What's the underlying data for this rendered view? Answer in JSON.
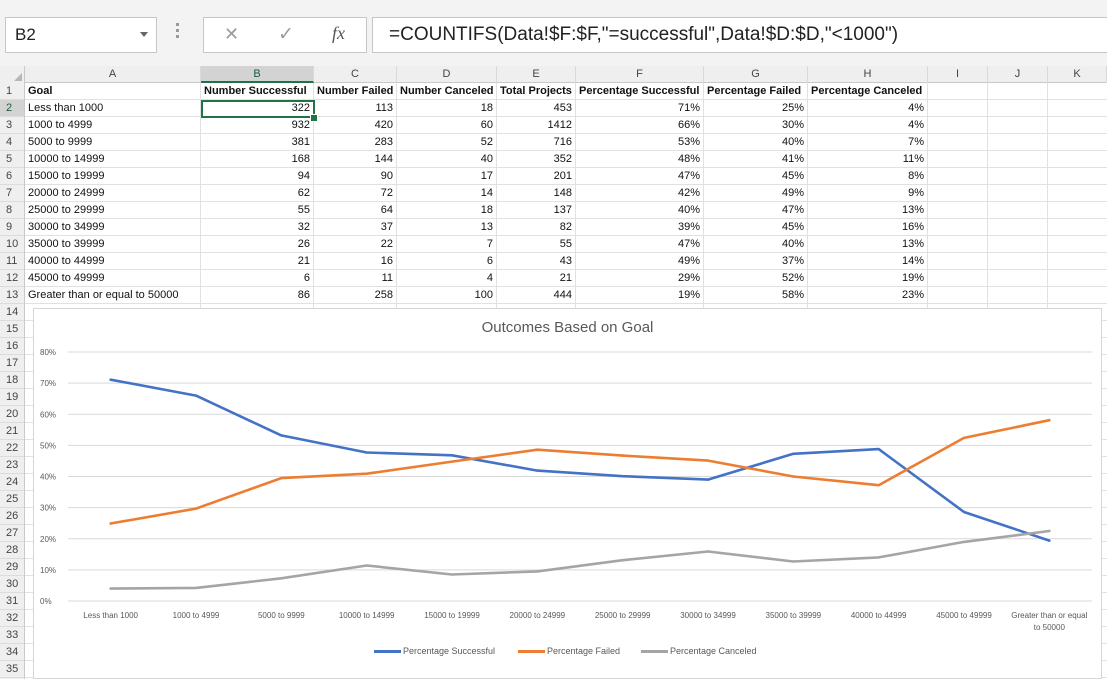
{
  "formula_bar": {
    "name_box": "B2",
    "cancel_symbol": "✕",
    "enter_symbol": "✓",
    "fx_symbol": "fx",
    "formula": "=COUNTIFS(Data!$F:$F,\"=successful\",Data!$D:$D,\"<1000\")"
  },
  "columns": [
    "A",
    "B",
    "C",
    "D",
    "E",
    "F",
    "G",
    "H",
    "I",
    "J",
    "K"
  ],
  "rows": [
    "1",
    "2",
    "3",
    "4",
    "5",
    "6",
    "7",
    "8",
    "9",
    "10",
    "11",
    "12",
    "13",
    "14",
    "15",
    "16",
    "17",
    "18",
    "19",
    "20",
    "21",
    "22",
    "23",
    "24",
    "25",
    "26",
    "27",
    "28",
    "29",
    "30",
    "31",
    "32",
    "33",
    "34",
    "35"
  ],
  "table": {
    "headers": [
      "Goal",
      "Number Successful",
      "Number Failed",
      "Number Canceled",
      "Total Projects",
      "Percentage Successful",
      "Percentage Failed",
      "Percentage Canceled"
    ],
    "data": [
      [
        "Less than 1000",
        "322",
        "113",
        "18",
        "453",
        "71%",
        "25%",
        "4%"
      ],
      [
        "1000 to 4999",
        "932",
        "420",
        "60",
        "1412",
        "66%",
        "30%",
        "4%"
      ],
      [
        "5000 to 9999",
        "381",
        "283",
        "52",
        "716",
        "53%",
        "40%",
        "7%"
      ],
      [
        "10000 to 14999",
        "168",
        "144",
        "40",
        "352",
        "48%",
        "41%",
        "11%"
      ],
      [
        "15000 to 19999",
        "94",
        "90",
        "17",
        "201",
        "47%",
        "45%",
        "8%"
      ],
      [
        "20000 to 24999",
        "62",
        "72",
        "14",
        "148",
        "42%",
        "49%",
        "9%"
      ],
      [
        "25000 to 29999",
        "55",
        "64",
        "18",
        "137",
        "40%",
        "47%",
        "13%"
      ],
      [
        "30000 to 34999",
        "32",
        "37",
        "13",
        "82",
        "39%",
        "45%",
        "16%"
      ],
      [
        "35000 to 39999",
        "26",
        "22",
        "7",
        "55",
        "47%",
        "40%",
        "13%"
      ],
      [
        "40000 to 44999",
        "21",
        "16",
        "6",
        "43",
        "49%",
        "37%",
        "14%"
      ],
      [
        "45000 to 49999",
        "6",
        "11",
        "4",
        "21",
        "29%",
        "52%",
        "19%"
      ],
      [
        "Greater than or equal to 50000",
        "86",
        "258",
        "100",
        "444",
        "19%",
        "58%",
        "23%"
      ]
    ]
  },
  "selected_cell": "B2",
  "chart_data": {
    "type": "line",
    "title": "Outcomes Based on Goal",
    "categories": [
      "Less than 1000",
      "1000 to 4999",
      "5000 to 9999",
      "10000 to 14999",
      "15000 to 19999",
      "20000 to 24999",
      "25000 to 29999",
      "30000 to 34999",
      "35000 to 39999",
      "40000 to 44999",
      "45000 to 49999",
      "Greater than or equal to 50000"
    ],
    "y_ticks": [
      "0%",
      "10%",
      "20%",
      "30%",
      "40%",
      "50%",
      "60%",
      "70%",
      "80%"
    ],
    "ylim": [
      0,
      80
    ],
    "grid": true,
    "legend_position": "bottom",
    "series": [
      {
        "name": "Percentage Successful",
        "color": "#4472c4",
        "values": [
          71.1,
          66.0,
          53.2,
          47.7,
          46.8,
          41.9,
          40.1,
          39.0,
          47.3,
          48.8,
          28.6,
          19.4
        ]
      },
      {
        "name": "Percentage Failed",
        "color": "#ed7d31",
        "values": [
          24.9,
          29.7,
          39.5,
          40.9,
          44.8,
          48.6,
          46.7,
          45.1,
          40.0,
          37.2,
          52.4,
          58.1
        ]
      },
      {
        "name": "Percentage Canceled",
        "color": "#a5a5a5",
        "values": [
          4.0,
          4.2,
          7.3,
          11.4,
          8.5,
          9.5,
          13.1,
          15.9,
          12.7,
          14.0,
          19.0,
          22.5
        ]
      }
    ]
  }
}
